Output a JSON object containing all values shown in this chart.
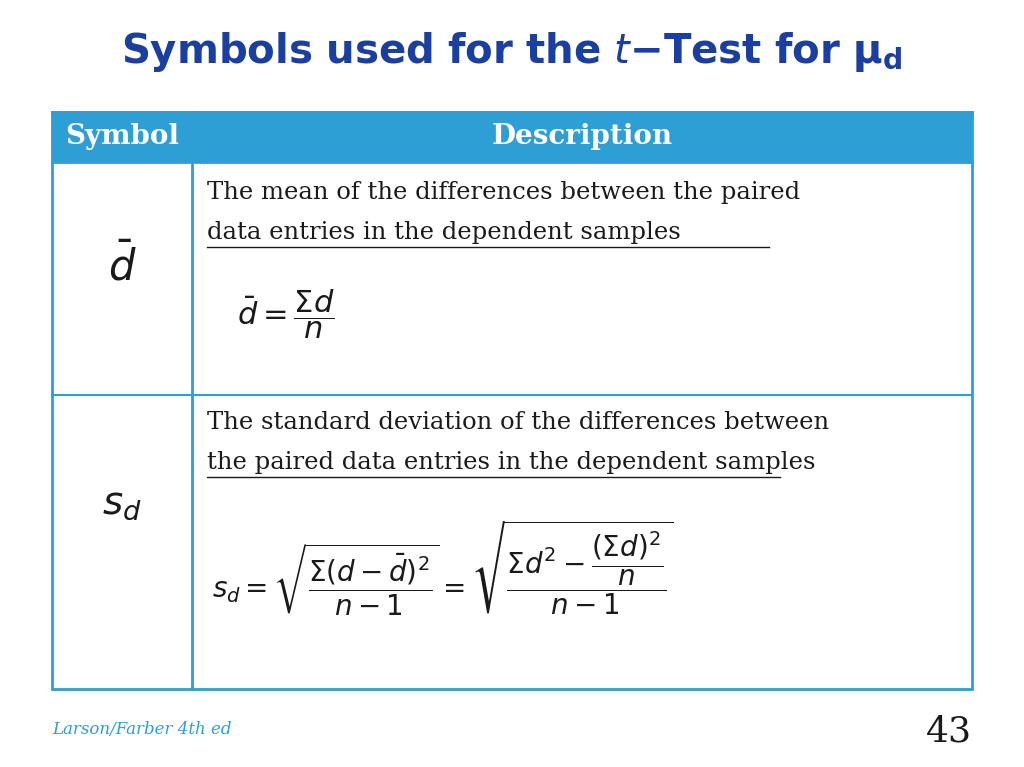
{
  "title_color": "#1B3FA0",
  "bg_color": "#FFFFFF",
  "header_bg": "#2E9FD4",
  "header_text_color": "#FFFFFF",
  "header_symbol": "Symbol",
  "header_desc": "Description",
  "table_border_color": "#2E9FD4",
  "cell_text_color": "#1a1a1a",
  "footer_text": "Larson/Farber 4th ed",
  "footer_color": "#2E9FD4",
  "page_number": "43",
  "figsize": [
    10.24,
    7.67
  ],
  "dpi": 100
}
